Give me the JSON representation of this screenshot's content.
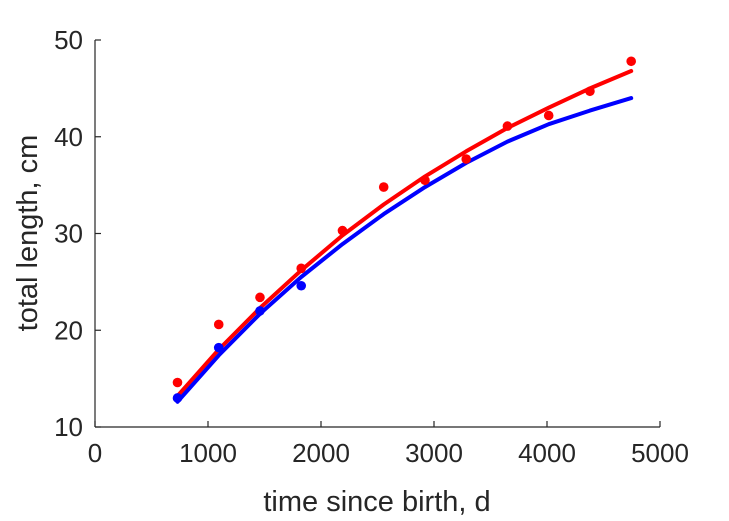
{
  "chart_data": {
    "type": "scatter",
    "title": "",
    "xlabel": "time since birth, d",
    "ylabel": "total length, cm",
    "xlim": [
      0,
      5000
    ],
    "ylim": [
      10,
      50
    ],
    "xticks": [
      0,
      1000,
      2000,
      3000,
      4000,
      5000
    ],
    "yticks": [
      10,
      20,
      30,
      40,
      50
    ],
    "grid": false,
    "legend": "none",
    "series": [
      {
        "kind": "points",
        "color": "#ff0000",
        "x": [
          730,
          1095,
          1460,
          1825,
          2190,
          2555,
          2920,
          3285,
          3650,
          4015,
          4380,
          4745
        ],
        "y": [
          14.6,
          20.6,
          23.4,
          26.4,
          30.3,
          34.8,
          35.5,
          37.7,
          41.1,
          42.2,
          44.7,
          47.8
        ]
      },
      {
        "kind": "points",
        "color": "#0000ff",
        "x": [
          730,
          1095,
          1460,
          1825
        ],
        "y": [
          13.0,
          18.2,
          22.0,
          24.6
        ]
      },
      {
        "kind": "line",
        "color": "#ff0000",
        "x": [
          730,
          1095,
          1460,
          1825,
          2190,
          2555,
          2920,
          3285,
          3650,
          4015,
          4380,
          4745
        ],
        "y": [
          13.2,
          18.0,
          22.3,
          26.2,
          29.8,
          33.0,
          35.9,
          38.5,
          40.9,
          43.0,
          45.0,
          46.8
        ]
      },
      {
        "kind": "line",
        "color": "#0000ff",
        "x": [
          730,
          1095,
          1460,
          1825,
          2190,
          2555,
          2920,
          3285,
          3650,
          4015,
          4380,
          4745
        ],
        "y": [
          12.6,
          17.4,
          21.7,
          25.5,
          28.9,
          32.0,
          34.8,
          37.3,
          39.5,
          41.3,
          42.7,
          44.0
        ]
      }
    ]
  }
}
